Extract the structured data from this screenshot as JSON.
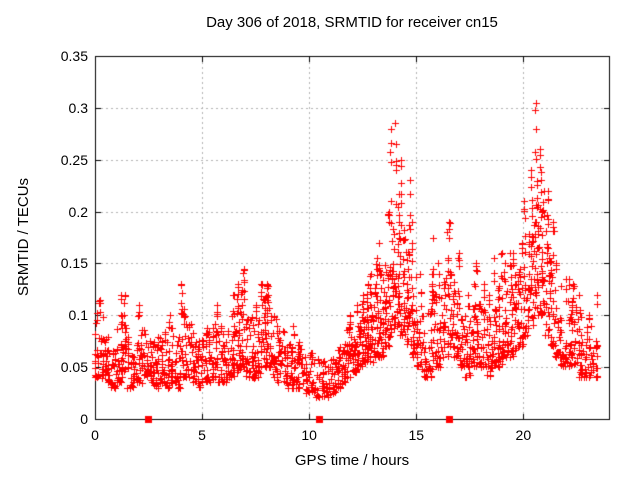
{
  "frame": {
    "background": "#ffffff",
    "border_color": "#000000",
    "grid_color": "#b0b0b0",
    "text_color": "#000000"
  },
  "chart_data": {
    "type": "scatter",
    "title": "Day 306 of 2018, SRMTID for receiver cn15",
    "xlabel": "GPS time / hours",
    "ylabel": "SRMTID / TECUs",
    "xlim": [
      0,
      24
    ],
    "ylim": [
      0,
      0.35
    ],
    "xtick_values": [
      0,
      5,
      10,
      15,
      20
    ],
    "xtick_labels": [
      "0",
      "5",
      "10",
      "15",
      "20"
    ],
    "ytick_values": [
      0,
      0.05,
      0.1,
      0.15,
      0.2,
      0.25,
      0.3,
      0.35
    ],
    "ytick_labels": [
      "0",
      "0.05",
      "0.1",
      "0.15",
      "0.2",
      "0.25",
      "0.3",
      "0.35"
    ],
    "grid": true,
    "legend": "none",
    "marker": {
      "shape": "plus",
      "color": "#ff0000",
      "size": 7
    },
    "axis_markers": {
      "shape": "filled-square",
      "color": "#ff0000",
      "y": 0,
      "x": [
        2.48,
        10.47,
        16.55
      ]
    },
    "series_name": "SRMTID",
    "peaks": [
      {
        "x": 14.0,
        "y": 0.285
      },
      {
        "x": 20.6,
        "y": 0.305
      }
    ],
    "density_bins": {
      "comment": "binned envelope of the scatter: [start_hour, n, y_low, y_high, outlier_max(0=none)]",
      "bin_width": 0.25,
      "seed": 306,
      "density": 1.8,
      "bins": [
        [
          0.0,
          13,
          0.04,
          0.11,
          0.115
        ],
        [
          0.25,
          13,
          0.04,
          0.1,
          0
        ],
        [
          0.5,
          13,
          0.035,
          0.08,
          0
        ],
        [
          0.75,
          11,
          0.03,
          0.07,
          0
        ],
        [
          1.0,
          13,
          0.035,
          0.09,
          0.12
        ],
        [
          1.25,
          13,
          0.04,
          0.1,
          0.12
        ],
        [
          1.5,
          11,
          0.03,
          0.08,
          0
        ],
        [
          1.75,
          11,
          0.03,
          0.075,
          0
        ],
        [
          2.0,
          13,
          0.035,
          0.095,
          0.11
        ],
        [
          2.25,
          11,
          0.04,
          0.09,
          0
        ],
        [
          2.5,
          11,
          0.035,
          0.085,
          0
        ],
        [
          2.75,
          11,
          0.03,
          0.08,
          0
        ],
        [
          3.0,
          11,
          0.035,
          0.08,
          0
        ],
        [
          3.25,
          11,
          0.03,
          0.085,
          0.1
        ],
        [
          3.5,
          13,
          0.035,
          0.09,
          0
        ],
        [
          3.75,
          11,
          0.03,
          0.08,
          0
        ],
        [
          4.0,
          13,
          0.04,
          0.11,
          0.13
        ],
        [
          4.25,
          11,
          0.04,
          0.095,
          0
        ],
        [
          4.5,
          11,
          0.035,
          0.085,
          0
        ],
        [
          4.75,
          11,
          0.03,
          0.08,
          0
        ],
        [
          5.0,
          13,
          0.035,
          0.09,
          0
        ],
        [
          5.25,
          11,
          0.035,
          0.085,
          0
        ],
        [
          5.5,
          13,
          0.04,
          0.095,
          0.11
        ],
        [
          5.75,
          11,
          0.035,
          0.09,
          0
        ],
        [
          6.0,
          11,
          0.035,
          0.09,
          0
        ],
        [
          6.25,
          13,
          0.04,
          0.1,
          0.12
        ],
        [
          6.5,
          13,
          0.045,
          0.115,
          0.13
        ],
        [
          6.75,
          15,
          0.05,
          0.13,
          0.145
        ],
        [
          7.0,
          13,
          0.04,
          0.11,
          0
        ],
        [
          7.25,
          11,
          0.04,
          0.1,
          0
        ],
        [
          7.5,
          11,
          0.04,
          0.1,
          0.11
        ],
        [
          7.75,
          15,
          0.05,
          0.12,
          0.13
        ],
        [
          8.0,
          15,
          0.05,
          0.125,
          0.13
        ],
        [
          8.25,
          11,
          0.04,
          0.1,
          0
        ],
        [
          8.5,
          11,
          0.035,
          0.09,
          0
        ],
        [
          8.75,
          11,
          0.035,
          0.085,
          0
        ],
        [
          9.0,
          11,
          0.03,
          0.08,
          0
        ],
        [
          9.25,
          11,
          0.03,
          0.08,
          0.09
        ],
        [
          9.5,
          11,
          0.03,
          0.075,
          0
        ],
        [
          9.75,
          9,
          0.025,
          0.07,
          0
        ],
        [
          10.0,
          9,
          0.025,
          0.065,
          0
        ],
        [
          10.25,
          9,
          0.02,
          0.06,
          0
        ],
        [
          10.5,
          9,
          0.02,
          0.06,
          0
        ],
        [
          10.75,
          9,
          0.02,
          0.055,
          0
        ],
        [
          11.0,
          9,
          0.025,
          0.06,
          0
        ],
        [
          11.25,
          11,
          0.03,
          0.07,
          0
        ],
        [
          11.5,
          11,
          0.035,
          0.08,
          0
        ],
        [
          11.75,
          13,
          0.04,
          0.09,
          0.1
        ],
        [
          12.0,
          13,
          0.045,
          0.1,
          0.11
        ],
        [
          12.25,
          13,
          0.05,
          0.105,
          0.12
        ],
        [
          12.5,
          15,
          0.055,
          0.11,
          0.13
        ],
        [
          12.75,
          15,
          0.055,
          0.115,
          0.14
        ],
        [
          13.0,
          15,
          0.06,
          0.13,
          0.155
        ],
        [
          13.25,
          15,
          0.06,
          0.14,
          0.17
        ],
        [
          13.5,
          15,
          0.07,
          0.16,
          0.2
        ],
        [
          13.75,
          17,
          0.08,
          0.2,
          0.28
        ],
        [
          14.0,
          17,
          0.09,
          0.22,
          0.285
        ],
        [
          14.25,
          15,
          0.08,
          0.2,
          0.25
        ],
        [
          14.5,
          15,
          0.07,
          0.17,
          0.23
        ],
        [
          14.75,
          13,
          0.06,
          0.14,
          0.19
        ],
        [
          15.0,
          11,
          0.05,
          0.11,
          0.14
        ],
        [
          15.25,
          11,
          0.04,
          0.1,
          0
        ],
        [
          15.5,
          11,
          0.04,
          0.11,
          0.13
        ],
        [
          15.75,
          13,
          0.05,
          0.13,
          0.175
        ],
        [
          16.0,
          11,
          0.05,
          0.12,
          0.15
        ],
        [
          16.25,
          13,
          0.06,
          0.14,
          0.18
        ],
        [
          16.5,
          15,
          0.07,
          0.15,
          0.19
        ],
        [
          16.75,
          13,
          0.06,
          0.13,
          0.16
        ],
        [
          17.0,
          11,
          0.05,
          0.11,
          0
        ],
        [
          17.25,
          11,
          0.04,
          0.1,
          0.12
        ],
        [
          17.5,
          11,
          0.05,
          0.11,
          0.13
        ],
        [
          17.75,
          13,
          0.05,
          0.12,
          0.15
        ],
        [
          18.0,
          11,
          0.05,
          0.11,
          0.13
        ],
        [
          18.25,
          11,
          0.04,
          0.1,
          0.12
        ],
        [
          18.5,
          13,
          0.05,
          0.12,
          0.155
        ],
        [
          18.75,
          13,
          0.05,
          0.13,
          0.16
        ],
        [
          19.0,
          13,
          0.06,
          0.13,
          0.15
        ],
        [
          19.25,
          13,
          0.06,
          0.14,
          0.16
        ],
        [
          19.5,
          13,
          0.06,
          0.14,
          0.16
        ],
        [
          19.75,
          13,
          0.07,
          0.15,
          0.17
        ],
        [
          20.0,
          15,
          0.08,
          0.17,
          0.21
        ],
        [
          20.25,
          15,
          0.09,
          0.2,
          0.24
        ],
        [
          20.5,
          17,
          0.1,
          0.23,
          0.305
        ],
        [
          20.75,
          17,
          0.1,
          0.22,
          0.26
        ],
        [
          21.0,
          15,
          0.08,
          0.19,
          0.22
        ],
        [
          21.25,
          13,
          0.07,
          0.16,
          0.19
        ],
        [
          21.5,
          13,
          0.06,
          0.13,
          0.15
        ],
        [
          21.75,
          11,
          0.05,
          0.11,
          0.135
        ],
        [
          22.0,
          11,
          0.05,
          0.11,
          0.135
        ],
        [
          22.25,
          11,
          0.05,
          0.12,
          0.13
        ],
        [
          22.5,
          11,
          0.04,
          0.1,
          0.12
        ],
        [
          22.75,
          9,
          0.04,
          0.09,
          0
        ],
        [
          23.0,
          9,
          0.04,
          0.09,
          0.1
        ],
        [
          23.25,
          7,
          0.04,
          0.095,
          0.12
        ]
      ]
    }
  }
}
